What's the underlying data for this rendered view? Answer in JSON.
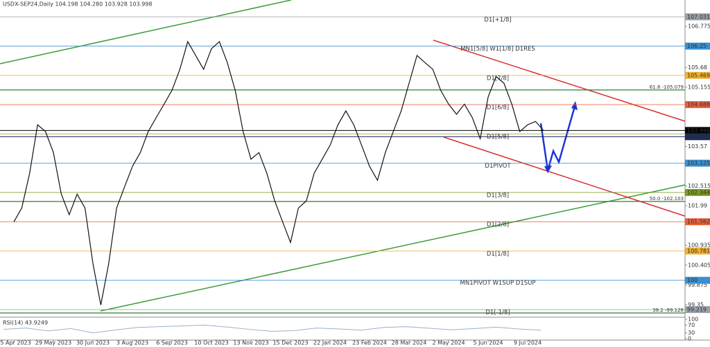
{
  "chart_data": {
    "type": "line",
    "title": "USDX-SEP24,Daily  104.198 104.280 103.928 103.998",
    "categories": [
      "25 Apr 2023",
      null,
      null,
      null,
      null,
      "29 May 2023",
      null,
      null,
      null,
      null,
      "30 Jun 2023",
      null,
      null,
      null,
      null,
      "3 Aug 2023",
      null,
      null,
      null,
      null,
      "6 Sep 2023",
      null,
      null,
      null,
      null,
      "10 Oct 2023",
      null,
      null,
      null,
      null,
      "13 Nov 2023",
      null,
      null,
      null,
      null,
      "15 Dec 2023",
      null,
      null,
      null,
      null,
      "22 Jan 2024",
      null,
      null,
      null,
      null,
      "23 Feb 2024",
      null,
      null,
      null,
      null,
      "28 Mar 2024",
      null,
      null,
      null,
      null,
      "2 May 2024",
      null,
      null,
      null,
      null,
      "5 Jun 2024",
      null,
      null,
      null,
      null,
      "9 Jul 2024",
      null,
      null
    ],
    "series": [
      {
        "name": "USDX-SEP24",
        "color": "#111111",
        "values": [
          101.56,
          101.93,
          102.86,
          104.15,
          103.97,
          103.41,
          102.3,
          101.75,
          102.3,
          101.93,
          100.45,
          99.34,
          100.45,
          101.93,
          102.49,
          103.04,
          103.41,
          103.97,
          104.34,
          104.7,
          105.07,
          105.63,
          106.37,
          106.0,
          105.63,
          106.18,
          106.37,
          105.81,
          105.07,
          103.97,
          103.23,
          103.41,
          102.86,
          102.12,
          101.56,
          101.01,
          101.93,
          102.12,
          102.86,
          103.23,
          103.6,
          104.15,
          104.52,
          104.15,
          103.6,
          103.04,
          102.67,
          103.41,
          103.97,
          104.52,
          105.26,
          106.0,
          105.81,
          105.63,
          105.07,
          104.7,
          104.43,
          104.7,
          104.34,
          103.78,
          104.89,
          105.44,
          105.26,
          104.7,
          103.97,
          104.15,
          104.24,
          103.998
        ]
      }
    ],
    "ylim": [
      99.07,
      107.48
    ],
    "yticks": [
      106.775,
      105.68,
      105.155,
      103.57,
      102.515,
      101.99,
      100.935,
      100.405,
      99.875,
      99.35
    ],
    "levels": [
      {
        "label": "D1[+1/8]",
        "price": 107.031,
        "color": "#9aa0a8"
      },
      {
        "label": "MN1[5/8] W1[1/8] D1RES",
        "price": 106.25,
        "color": "#3a8fd0"
      },
      {
        "label": "D1[7/8]",
        "price": 105.469,
        "color": "#f0b030"
      },
      {
        "label": "D1[6/8]",
        "price": 104.688,
        "color": "#e8603c"
      },
      {
        "label": "D1[5/8]",
        "price": 103.906,
        "color": "#a0a040"
      },
      {
        "label": "D1PIVOT",
        "price": 103.125,
        "color": "#3a8fd0"
      },
      {
        "label": "D1[3/8]",
        "price": 102.344,
        "color": "#7a9a20"
      },
      {
        "label": "D1[2/8]",
        "price": 101.562,
        "color": "#e8603c"
      },
      {
        "label": "D1[1/8]",
        "price": 100.781,
        "color": "#f0b030"
      },
      {
        "label": "MN1PIVOT W1SUP D1SUP",
        "price": 100,
        "color": "#3a8fd0"
      },
      {
        "label": "D1[-1/8]",
        "price": 99.219,
        "color": "#9aa0a8"
      }
    ],
    "fib_levels": [
      {
        "label": "61.8 -105.079",
        "price": 105.079
      },
      {
        "label": "50.0 -102.103",
        "price": 102.103
      },
      {
        "label": "38.2 -99.128",
        "price": 99.128
      }
    ],
    "fib_color": "#2e7d32",
    "markers": [
      {
        "price": 103.998,
        "color": "#000000"
      },
      {
        "price": 103.832,
        "color": "#1a2a5a"
      }
    ],
    "rsi": {
      "label": "RSI(14) 43.9249",
      "ylim": [
        0,
        100
      ],
      "yticks": [
        100,
        70,
        30,
        0
      ],
      "color": "#9ab0c8",
      "values": [
        48,
        55,
        40,
        52,
        30,
        45,
        58,
        62,
        66,
        70,
        60,
        48,
        38,
        42,
        55,
        50,
        44,
        58,
        62,
        54,
        46,
        52,
        60,
        50,
        44
      ]
    }
  }
}
